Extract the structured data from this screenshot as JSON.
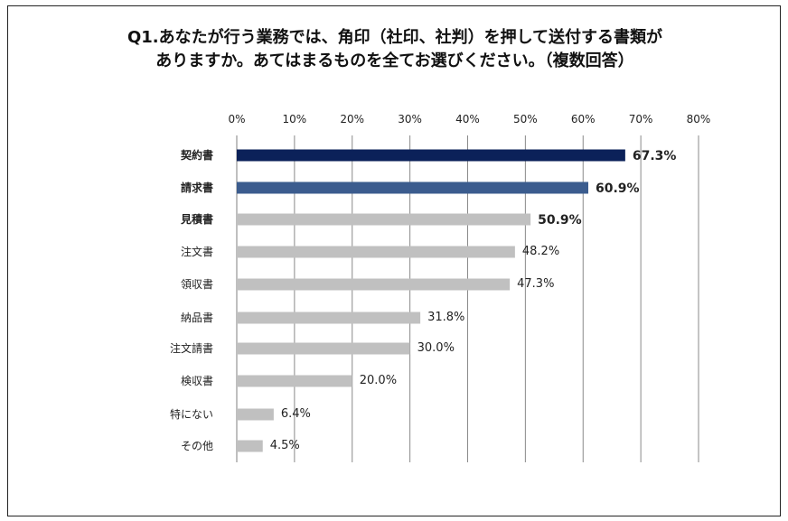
{
  "chart_data": {
    "type": "bar",
    "orientation": "horizontal",
    "title_lines": [
      "Q1.あなたが行う業務では、角印（社印、社判）を押して送付する書類が",
      "ありますか。あてはまるものを全てお選びください。（複数回答）"
    ],
    "xlim": [
      0,
      80
    ],
    "x_ticks": [
      "0%",
      "10%",
      "20%",
      "30%",
      "40%",
      "50%",
      "60%",
      "70%",
      "80%"
    ],
    "grid": true,
    "categories": [
      "契約書",
      "請求書",
      "見積書",
      "注文書",
      "領収書",
      "納品書",
      "注文請書",
      "検収書",
      "特にない",
      "その他"
    ],
    "values": [
      67.3,
      60.9,
      50.9,
      48.2,
      47.3,
      31.8,
      30.0,
      20.0,
      6.4,
      4.5
    ],
    "value_labels": [
      "67.3%",
      "60.9%",
      "50.9%",
      "48.2%",
      "47.3%",
      "31.8%",
      "30.0%",
      "20.0%",
      "6.4%",
      "4.5%"
    ],
    "bar_colors": [
      "#0b2159",
      "#3b5c8e",
      "#c0c0c0",
      "#c0c0c0",
      "#c0c0c0",
      "#c0c0c0",
      "#c0c0c0",
      "#c0c0c0",
      "#c0c0c0",
      "#c0c0c0"
    ],
    "bold_rank": [
      true,
      true,
      true,
      false,
      false,
      false,
      false,
      false,
      false,
      false
    ]
  }
}
